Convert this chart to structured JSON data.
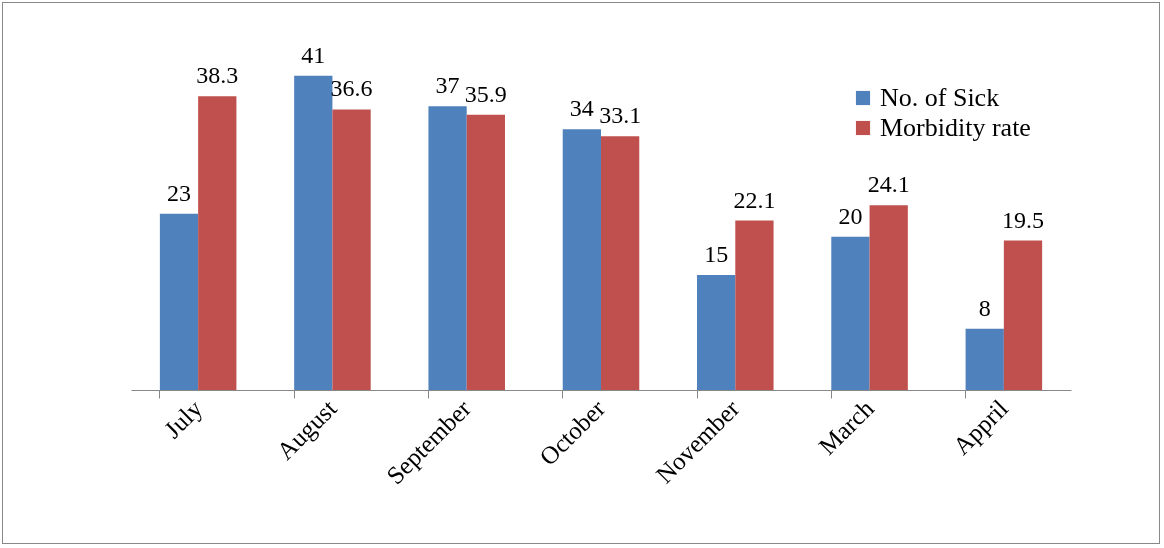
{
  "chart_data": {
    "type": "bar",
    "categories": [
      "July",
      "August",
      "September",
      "October",
      "November",
      "March",
      "Appril"
    ],
    "series": [
      {
        "name": "No. of Sick",
        "color": "#4f81bd",
        "values": [
          23,
          41,
          37,
          34,
          15,
          20,
          8
        ]
      },
      {
        "name": "Morbidity rate",
        "color": "#c0504d",
        "values": [
          38.3,
          36.6,
          35.9,
          33.1,
          22.1,
          24.1,
          19.5
        ]
      }
    ],
    "data_labels": true,
    "legend": "top right"
  }
}
